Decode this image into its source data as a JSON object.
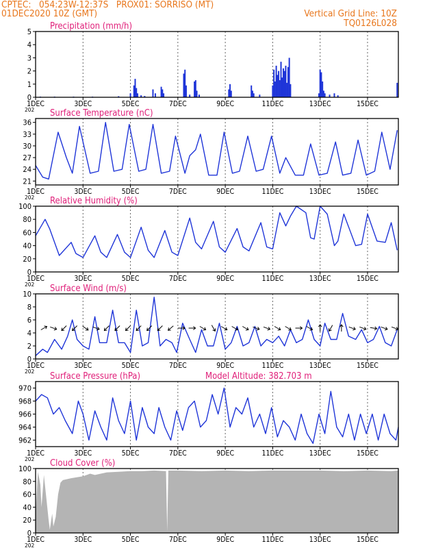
{
  "header": {
    "line1": "CPTEC:   054:23W-12:37S   PROX01: SORRISO (MT)",
    "line2": "01DEC2020 10Z (GMT)",
    "right1": "Vertical Grid Line: 10Z",
    "right2": "TQ0126L028"
  },
  "colors": {
    "header": "#e8761c",
    "panel_title": "#e0207a",
    "series": "#1f35d8",
    "cloud_fill": "#b4b4b4"
  },
  "x_axis_labels": [
    "1DEC",
    "3DEC",
    "5DEC",
    "7DEC",
    "9DEC",
    "11DEC",
    "13DEC",
    "15DEC"
  ],
  "x_year_fragment": "202",
  "chart_data": [
    {
      "type": "bar",
      "title": "Precipitation (mm/h)",
      "ylim": [
        0,
        5
      ],
      "yticks": [
        0,
        1,
        2,
        3,
        4,
        5
      ],
      "xlim_days": [
        1,
        16.3
      ],
      "series": [
        {
          "x_days": [
            1.2,
            1.8,
            2.6,
            3.4,
            4.5,
            5.0,
            5.15,
            5.2,
            5.25,
            5.3,
            5.45,
            5.6,
            5.95,
            6.05,
            6.3,
            6.35,
            6.4,
            7.25,
            7.3,
            7.35,
            7.5,
            7.7,
            7.75,
            7.8,
            7.9,
            9.15,
            9.2,
            9.25,
            10.1,
            10.15,
            10.2,
            10.45,
            11.0,
            11.05,
            11.1,
            11.15,
            11.2,
            11.25,
            11.3,
            11.35,
            11.4,
            11.45,
            11.5,
            11.55,
            11.6,
            11.65,
            11.7,
            11.75,
            12.95,
            13.0,
            13.05,
            13.1,
            13.15,
            13.2,
            13.4,
            13.6,
            13.75,
            16.25
          ],
          "values": [
            0.05,
            0.05,
            0.05,
            0.05,
            0.08,
            0.3,
            0.9,
            1.4,
            0.7,
            0.3,
            0.15,
            0.1,
            0.6,
            0.3,
            0.8,
            0.6,
            0.3,
            1.8,
            2.1,
            0.9,
            0.2,
            1.2,
            1.3,
            0.5,
            0.2,
            0.6,
            1.0,
            0.5,
            0.9,
            0.5,
            0.3,
            0.2,
            0.9,
            2.1,
            1.2,
            2.4,
            1.7,
            2.0,
            1.3,
            2.7,
            1.5,
            2.2,
            2.0,
            2.4,
            1.1,
            2.3,
            3.0,
            1.0,
            0.3,
            2.1,
            1.9,
            1.2,
            0.5,
            0.3,
            0.2,
            0.3,
            0.15,
            1.1
          ]
        }
      ]
    },
    {
      "type": "line",
      "title": "Surface Temperature (nC)",
      "ylim": [
        20,
        37
      ],
      "yticks": [
        21,
        24,
        27,
        30,
        33,
        36
      ],
      "xlim_days": [
        1,
        16.3
      ],
      "series": [
        {
          "x_days": [
            1.0,
            1.3,
            1.55,
            1.95,
            2.3,
            2.55,
            2.85,
            3.3,
            3.65,
            3.95,
            4.3,
            4.65,
            4.95,
            5.35,
            5.65,
            5.95,
            6.3,
            6.65,
            6.9,
            7.3,
            7.5,
            7.75,
            7.95,
            8.3,
            8.65,
            8.95,
            9.3,
            9.6,
            9.95,
            10.3,
            10.6,
            10.95,
            11.3,
            11.55,
            11.95,
            12.3,
            12.6,
            12.95,
            13.3,
            13.65,
            13.95,
            14.3,
            14.6,
            14.95,
            15.3,
            15.6,
            15.95,
            16.25
          ],
          "values": [
            25.0,
            22.0,
            21.5,
            33.5,
            27.0,
            23.0,
            35.0,
            23.0,
            23.5,
            36.0,
            23.5,
            24.0,
            35.5,
            23.5,
            24.0,
            35.5,
            23.0,
            23.5,
            32.5,
            23.0,
            27.5,
            29.0,
            33.0,
            22.5,
            22.5,
            33.5,
            23.0,
            23.5,
            32.5,
            23.5,
            24.0,
            32.5,
            23.0,
            27.0,
            22.5,
            22.5,
            30.5,
            22.5,
            23.0,
            31.0,
            22.5,
            23.0,
            31.5,
            22.5,
            23.5,
            33.5,
            24.0,
            34.0
          ]
        }
      ]
    },
    {
      "type": "line",
      "title": "Relative Humidity (%)",
      "ylim": [
        0,
        100
      ],
      "yticks": [
        0,
        20,
        40,
        60,
        80,
        100
      ],
      "xlim_days": [
        1,
        16.3
      ],
      "series": [
        {
          "x_days": [
            1.0,
            1.4,
            1.6,
            2.0,
            2.5,
            2.7,
            3.0,
            3.5,
            3.75,
            4.0,
            4.45,
            4.75,
            5.0,
            5.45,
            5.75,
            6.0,
            6.45,
            6.75,
            7.0,
            7.5,
            7.75,
            8.0,
            8.5,
            8.75,
            9.0,
            9.5,
            9.75,
            10.0,
            10.5,
            10.75,
            11.0,
            11.3,
            11.55,
            11.75,
            12.0,
            12.4,
            12.6,
            12.75,
            13.0,
            13.3,
            13.6,
            13.75,
            14.0,
            14.5,
            14.75,
            15.0,
            15.4,
            15.75,
            16.0,
            16.25
          ],
          "values": [
            55,
            80,
            65,
            25,
            45,
            28,
            22,
            55,
            30,
            22,
            57,
            30,
            22,
            68,
            33,
            22,
            63,
            30,
            25,
            82,
            45,
            35,
            77,
            38,
            30,
            66,
            38,
            32,
            75,
            38,
            35,
            90,
            70,
            85,
            100,
            90,
            52,
            50,
            100,
            88,
            40,
            47,
            88,
            40,
            42,
            88,
            47,
            45,
            75,
            33
          ]
        }
      ]
    },
    {
      "type": "line",
      "title": "Surface Wind (m/s)",
      "ylim": [
        0,
        10
      ],
      "yticks": [
        0,
        2,
        4,
        6,
        8,
        10
      ],
      "xlim_days": [
        1,
        16.3
      ],
      "series": [
        {
          "x_days": [
            1.0,
            1.3,
            1.5,
            1.8,
            2.1,
            2.35,
            2.55,
            2.75,
            3.0,
            3.25,
            3.5,
            3.7,
            4.0,
            4.25,
            4.5,
            4.75,
            5.0,
            5.25,
            5.5,
            5.75,
            6.0,
            6.25,
            6.5,
            6.75,
            6.95,
            7.2,
            7.5,
            7.75,
            8.0,
            8.25,
            8.5,
            8.75,
            9.0,
            9.25,
            9.5,
            9.75,
            10.0,
            10.25,
            10.5,
            10.75,
            11.0,
            11.25,
            11.5,
            11.75,
            12.0,
            12.25,
            12.5,
            12.75,
            13.0,
            13.2,
            13.45,
            13.7,
            13.95,
            14.2,
            14.5,
            14.75,
            15.0,
            15.25,
            15.5,
            15.75,
            16.0,
            16.25
          ],
          "values": [
            0.5,
            1.5,
            1.0,
            3.0,
            1.5,
            3.5,
            6.0,
            3.0,
            2.0,
            1.5,
            6.5,
            2.5,
            2.5,
            7.5,
            2.5,
            2.5,
            1.0,
            7.5,
            2.0,
            2.5,
            9.5,
            2.0,
            3.0,
            2.5,
            1.0,
            5.5,
            3.0,
            1.0,
            4.5,
            2.0,
            2.0,
            5.5,
            1.5,
            2.5,
            5.0,
            2.0,
            2.5,
            5.0,
            2.0,
            3.0,
            2.5,
            3.5,
            2.0,
            4.5,
            2.5,
            3.0,
            6.0,
            3.0,
            2.0,
            5.5,
            3.0,
            3.0,
            7.0,
            3.5,
            3.0,
            4.5,
            2.5,
            3.0,
            5.0,
            2.5,
            2.0,
            4.5
          ]
        }
      ],
      "wind_barbs": {
        "x_days": [
          1.35,
          1.75,
          2.2,
          2.65,
          3.1,
          3.55,
          4.0,
          4.45,
          4.9,
          5.35,
          5.8,
          6.25,
          6.7,
          7.15,
          7.6,
          8.05,
          8.5,
          8.95,
          9.4,
          9.85,
          10.3,
          10.75,
          11.2,
          11.65,
          12.1,
          12.55,
          13.0,
          13.45,
          13.9,
          14.35,
          14.8,
          15.25,
          15.7,
          16.15
        ],
        "dir_deg": [
          60,
          110,
          225,
          225,
          125,
          110,
          225,
          225,
          225,
          225,
          225,
          225,
          230,
          90,
          90,
          120,
          150,
          120,
          120,
          120,
          110,
          110,
          120,
          120,
          90,
          120,
          0,
          210,
          0,
          110,
          110,
          100,
          110,
          110
        ]
      }
    },
    {
      "type": "line",
      "title": "Surface Pressure (hPa)",
      "subtitle": "Model Altitude: 382.703 m",
      "ylim": [
        961,
        971
      ],
      "yticks": [
        962,
        964,
        966,
        968,
        970
      ],
      "xlim_days": [
        1,
        16.3
      ],
      "series": [
        {
          "x_days": [
            1.0,
            1.25,
            1.5,
            1.75,
            2.0,
            2.25,
            2.55,
            2.8,
            3.0,
            3.25,
            3.5,
            3.75,
            4.0,
            4.25,
            4.5,
            4.75,
            5.0,
            5.25,
            5.5,
            5.75,
            6.0,
            6.2,
            6.45,
            6.7,
            6.95,
            7.2,
            7.45,
            7.7,
            7.95,
            8.2,
            8.45,
            8.7,
            8.95,
            9.2,
            9.45,
            9.7,
            9.95,
            10.2,
            10.45,
            10.7,
            10.95,
            11.2,
            11.45,
            11.7,
            11.95,
            12.2,
            12.45,
            12.7,
            12.95,
            13.2,
            13.45,
            13.7,
            13.95,
            14.2,
            14.45,
            14.7,
            14.95,
            15.2,
            15.45,
            15.7,
            15.95,
            16.2,
            16.3
          ],
          "values": [
            968,
            969,
            968.5,
            966,
            967,
            965,
            963,
            968,
            966,
            962,
            966.5,
            964,
            962,
            968.5,
            965,
            963,
            968,
            962,
            967,
            964,
            963,
            967,
            964,
            962,
            966.5,
            963.5,
            967,
            968,
            964,
            965,
            969,
            966,
            970,
            964,
            967,
            966,
            968.5,
            964,
            966,
            963,
            967,
            962.5,
            965,
            964,
            962,
            966,
            963,
            961.5,
            966,
            963,
            969.5,
            964,
            962.5,
            966,
            962,
            966,
            963,
            966,
            962,
            966,
            963,
            962,
            964
          ]
        }
      ]
    },
    {
      "type": "area",
      "title": "Cloud Cover (%)",
      "ylim": [
        0,
        100
      ],
      "yticks": [
        0,
        20,
        40,
        60,
        80,
        100
      ],
      "xlim_days": [
        1,
        16.3
      ],
      "series": [
        {
          "x_days": [
            1.0,
            1.1,
            1.2,
            1.25,
            1.35,
            1.45,
            1.55,
            1.6,
            1.7,
            1.75,
            1.85,
            1.95,
            2.05,
            2.15,
            2.5,
            3.0,
            3.3,
            3.5,
            4.0,
            4.5,
            5.0,
            5.5,
            6.0,
            6.5,
            6.55,
            6.6,
            7.0,
            8.0,
            9.0,
            10.0,
            11.0,
            12.0,
            13.0,
            14.0,
            15.0,
            16.0,
            16.3
          ],
          "values": [
            30,
            95,
            75,
            40,
            90,
            55,
            20,
            5,
            30,
            10,
            25,
            60,
            78,
            82,
            85,
            88,
            92,
            90,
            94,
            95,
            96,
            96,
            97,
            96,
            2,
            97,
            97,
            96,
            97,
            96,
            97,
            97,
            97,
            96,
            97,
            96,
            97
          ]
        }
      ]
    }
  ]
}
